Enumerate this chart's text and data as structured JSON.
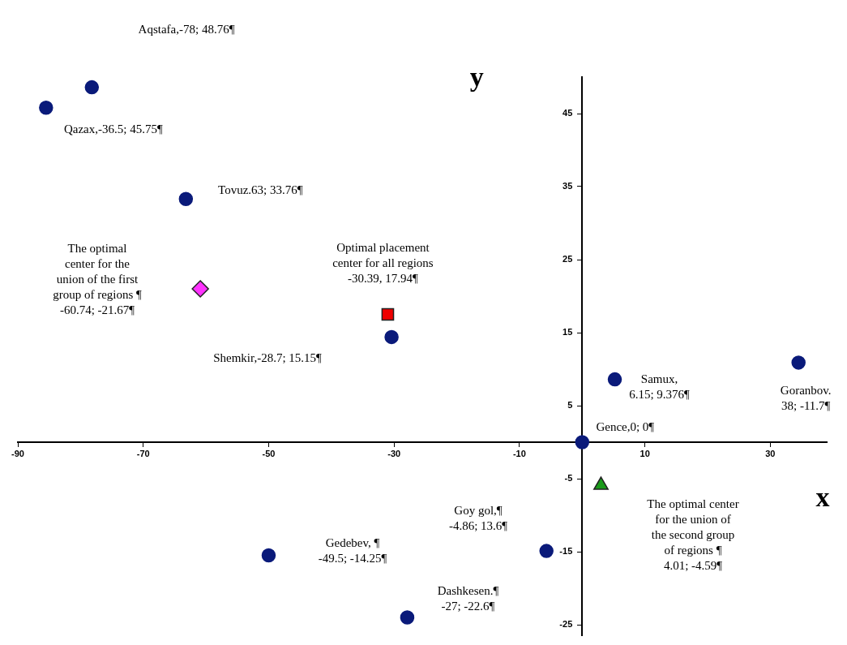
{
  "chart_data": {
    "type": "scatter",
    "xlabel": "x",
    "ylabel": "y",
    "xlim": [
      -90,
      39
    ],
    "ylim": [
      -26.5,
      50
    ],
    "xticks": [
      -90,
      -70,
      -50,
      -30,
      -10,
      10,
      30
    ],
    "yticks": [
      -25,
      -15,
      -5,
      5,
      15,
      25,
      35,
      45
    ],
    "grid": false,
    "legend": false,
    "marker": "circle",
    "series": [
      {
        "color": "#0a1a7a",
        "x": [
          -78.2,
          -85.5,
          -63.2,
          -30.4,
          5.2,
          34.5,
          0,
          -50,
          -5.7,
          -27.9
        ],
        "values": [
          48.6,
          45.8,
          33.3,
          14.4,
          8.6,
          10.9,
          0,
          -15.5,
          -14.9,
          -24
        ]
      },
      {
        "color": "#ff33ff",
        "marker": "diamond",
        "x": [
          -60.9
        ],
        "values": [
          21
        ]
      },
      {
        "color": "#ee0000",
        "marker": "square",
        "x": [
          -31
        ],
        "values": [
          17.5
        ]
      },
      {
        "color": "#1a9a1a",
        "marker": "triangle",
        "x": [
          3
        ],
        "values": [
          -5.9
        ]
      }
    ],
    "annotations": [
      "Aqstafa,-78; 48.76¶",
      {
        "text": "Qazax,-36.5; 45.75¶",
        "x": -85.5,
        "y": 45.8
      },
      {
        "text": "Tovuz.63; 33.76¶",
        "x": -63.2,
        "y": 33.3
      },
      "The optimal\ncenter for the\nunion of the first\ngroup of regions ¶\n-60.74; -21.67¶",
      {
        "text": "Optimal placement\ncenter for all regions\n-30.39, 17.94¶",
        "x": -31,
        "y": 17.5
      },
      "Shemkir,-28.7; 15.15¶",
      {
        "text": "Samux,\n6.15; 9.376¶",
        "x": 5.2,
        "y": 8.6
      },
      {
        "text": "Goranbov.\n38; -11.7¶",
        "x": 34.5,
        "y": 10.9
      },
      {
        "text": "Gence,0; 0¶",
        "x": 0,
        "y": 0
      },
      "The optimal center\nfor the union of\nthe second group\nof regions ¶\n4.01; -4.59¶",
      "Goy gol,¶\n-4.86; 13.6¶",
      "Gedebev, ¶\n-49.5; -14.25¶",
      {
        "text": "Dashkesen.¶\n-27; -22.6¶",
        "x": -27.9,
        "y": -24
      }
    ]
  }
}
